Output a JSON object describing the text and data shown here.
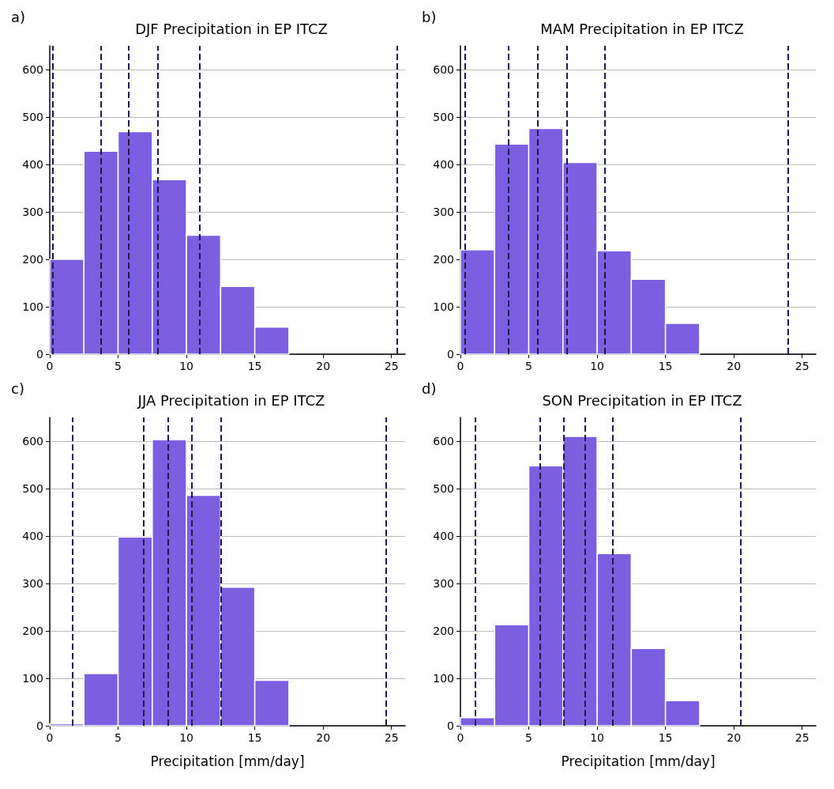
{
  "chart_data": [
    {
      "type": "histogram",
      "title": "DJF Precipitation in EP ITCZ",
      "annotations": [
        "a)"
      ],
      "bins": [
        0,
        2.5,
        5,
        7.5,
        10,
        12.5,
        15,
        17.5
      ],
      "values": [
        200,
        428,
        469,
        368,
        251,
        143,
        57
      ],
      "color": "#7b5fe0",
      "xlim": [
        0,
        26
      ],
      "xticks": [
        0,
        5,
        10,
        15,
        20,
        25
      ],
      "ylim": [
        0,
        650
      ],
      "yticks": [
        0,
        100,
        200,
        300,
        400,
        500,
        600
      ],
      "grid": "y",
      "ref_lines": [
        {
          "axis": "x",
          "value": 0.23,
          "color": "#1a1a4e",
          "line_style": "dashed"
        },
        {
          "axis": "x",
          "value": 3.72,
          "color": "#1a1a4e",
          "line_style": "dashed"
        },
        {
          "axis": "x",
          "value": 5.75,
          "color": "#1a1a4e",
          "line_style": "dashed"
        },
        {
          "axis": "x",
          "value": 7.9,
          "color": "#1a1a4e",
          "line_style": "dashed"
        },
        {
          "axis": "x",
          "value": 10.97,
          "color": "#1a1a4e",
          "line_style": "dashed"
        },
        {
          "axis": "x",
          "value": 25.38,
          "color": "#1a1a4e",
          "line_style": "dashed"
        }
      ]
    },
    {
      "type": "histogram",
      "title": "MAM Precipitation in EP ITCZ",
      "annotations": [
        "b)"
      ],
      "bins": [
        0,
        2.5,
        5,
        7.5,
        10,
        12.5,
        15,
        17.5
      ],
      "values": [
        220,
        443,
        476,
        404,
        218,
        158,
        65
      ],
      "color": "#7b5fe0",
      "xlim": [
        0,
        26
      ],
      "xticks": [
        0,
        5,
        10,
        15,
        20,
        25
      ],
      "ylim": [
        0,
        650
      ],
      "yticks": [
        0,
        100,
        200,
        300,
        400,
        500,
        600
      ],
      "grid": "y",
      "ref_lines": [
        {
          "axis": "x",
          "value": 0.36,
          "color": "#1a1a4e",
          "line_style": "dashed"
        },
        {
          "axis": "x",
          "value": 3.53,
          "color": "#1a1a4e",
          "line_style": "dashed"
        },
        {
          "axis": "x",
          "value": 5.66,
          "color": "#1a1a4e",
          "line_style": "dashed"
        },
        {
          "axis": "x",
          "value": 7.8,
          "color": "#1a1a4e",
          "line_style": "dashed"
        },
        {
          "axis": "x",
          "value": 10.53,
          "color": "#1a1a4e",
          "line_style": "dashed"
        },
        {
          "axis": "x",
          "value": 23.95,
          "color": "#1a1a4e",
          "line_style": "dashed"
        }
      ]
    },
    {
      "type": "histogram",
      "title": "JJA Precipitation in EP ITCZ",
      "xlabel": "Precipitation [mm/day]",
      "annotations": [
        "c)"
      ],
      "bins": [
        0,
        2.5,
        5,
        7.5,
        10,
        12.5,
        15,
        17.5
      ],
      "values": [
        4,
        110,
        398,
        603,
        486,
        292,
        96
      ],
      "color": "#7b5fe0",
      "xlim": [
        0,
        26
      ],
      "xticks": [
        0,
        5,
        10,
        15,
        20,
        25
      ],
      "ylim": [
        0,
        650
      ],
      "yticks": [
        0,
        100,
        200,
        300,
        400,
        500,
        600
      ],
      "grid": "y",
      "ref_lines": [
        {
          "axis": "x",
          "value": 1.67,
          "color": "#1a1a4e",
          "line_style": "dashed"
        },
        {
          "axis": "x",
          "value": 6.86,
          "color": "#1a1a4e",
          "line_style": "dashed"
        },
        {
          "axis": "x",
          "value": 8.68,
          "color": "#1a1a4e",
          "line_style": "dashed"
        },
        {
          "axis": "x",
          "value": 10.39,
          "color": "#1a1a4e",
          "line_style": "dashed"
        },
        {
          "axis": "x",
          "value": 12.52,
          "color": "#1a1a4e",
          "line_style": "dashed"
        },
        {
          "axis": "x",
          "value": 24.62,
          "color": "#1a1a4e",
          "line_style": "dashed"
        }
      ]
    },
    {
      "type": "histogram",
      "title": "SON Precipitation in EP ITCZ",
      "xlabel": "Precipitation [mm/day]",
      "annotations": [
        "d)"
      ],
      "bins": [
        0,
        2.5,
        5,
        7.5,
        10,
        12.5,
        15,
        17.5
      ],
      "values": [
        17,
        213,
        548,
        610,
        363,
        163,
        53
      ],
      "color": "#7b5fe0",
      "xlim": [
        0,
        26
      ],
      "xticks": [
        0,
        5,
        10,
        15,
        20,
        25
      ],
      "ylim": [
        0,
        650
      ],
      "yticks": [
        0,
        100,
        200,
        300,
        400,
        500,
        600
      ],
      "grid": "y",
      "ref_lines": [
        {
          "axis": "x",
          "value": 1.07,
          "color": "#1a1a4e",
          "line_style": "dashed"
        },
        {
          "axis": "x",
          "value": 5.83,
          "color": "#1a1a4e",
          "line_style": "dashed"
        },
        {
          "axis": "x",
          "value": 7.53,
          "color": "#1a1a4e",
          "line_style": "dashed"
        },
        {
          "axis": "x",
          "value": 9.09,
          "color": "#1a1a4e",
          "line_style": "dashed"
        },
        {
          "axis": "x",
          "value": 11.12,
          "color": "#1a1a4e",
          "line_style": "dashed"
        },
        {
          "axis": "x",
          "value": 20.51,
          "color": "#1a1a4e",
          "line_style": "dashed"
        }
      ]
    }
  ]
}
